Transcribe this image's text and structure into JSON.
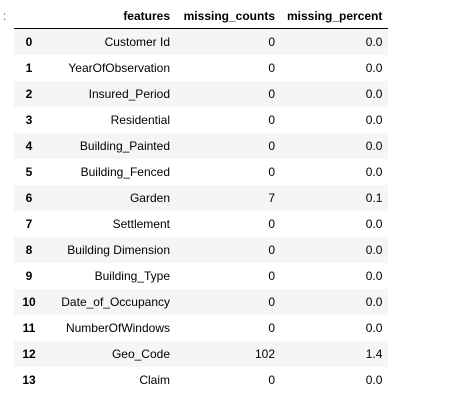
{
  "prompt_marker": ":",
  "table": {
    "columns": [
      "",
      "features",
      "missing_counts",
      "missing_percent"
    ],
    "rows": [
      {
        "index": "0",
        "features": "Customer Id",
        "missing_counts": "0",
        "missing_percent": "0.0"
      },
      {
        "index": "1",
        "features": "YearOfObservation",
        "missing_counts": "0",
        "missing_percent": "0.0"
      },
      {
        "index": "2",
        "features": "Insured_Period",
        "missing_counts": "0",
        "missing_percent": "0.0"
      },
      {
        "index": "3",
        "features": "Residential",
        "missing_counts": "0",
        "missing_percent": "0.0"
      },
      {
        "index": "4",
        "features": "Building_Painted",
        "missing_counts": "0",
        "missing_percent": "0.0"
      },
      {
        "index": "5",
        "features": "Building_Fenced",
        "missing_counts": "0",
        "missing_percent": "0.0"
      },
      {
        "index": "6",
        "features": "Garden",
        "missing_counts": "7",
        "missing_percent": "0.1"
      },
      {
        "index": "7",
        "features": "Settlement",
        "missing_counts": "0",
        "missing_percent": "0.0"
      },
      {
        "index": "8",
        "features": "Building Dimension",
        "missing_counts": "0",
        "missing_percent": "0.0"
      },
      {
        "index": "9",
        "features": "Building_Type",
        "missing_counts": "0",
        "missing_percent": "0.0"
      },
      {
        "index": "10",
        "features": "Date_of_Occupancy",
        "missing_counts": "0",
        "missing_percent": "0.0"
      },
      {
        "index": "11",
        "features": "NumberOfWindows",
        "missing_counts": "0",
        "missing_percent": "0.0"
      },
      {
        "index": "12",
        "features": "Geo_Code",
        "missing_counts": "102",
        "missing_percent": "1.4"
      },
      {
        "index": "13",
        "features": "Claim",
        "missing_counts": "0",
        "missing_percent": "0.0"
      }
    ]
  }
}
